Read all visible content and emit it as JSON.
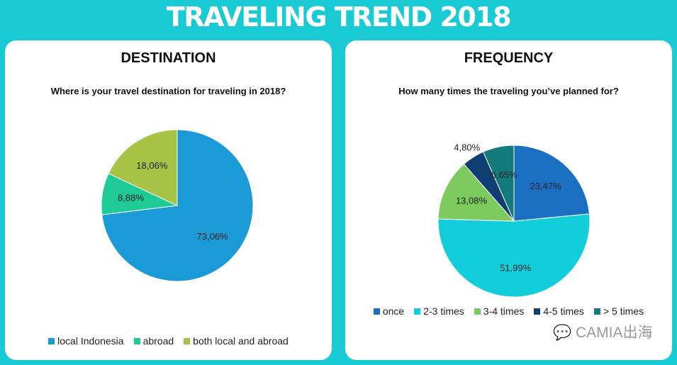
{
  "title": "TRAVELING TREND 2018",
  "watermark": "CAMIA出海",
  "chart_data": [
    {
      "type": "pie",
      "title": "DESTINATION",
      "subtitle": "Where is your travel destination for traveling in 2018?",
      "categories": [
        "local Indonesia",
        "abroad",
        "both local and abroad"
      ],
      "values": [
        73.06,
        8.88,
        18.06
      ],
      "labels": [
        "73,06%",
        "8,88%",
        "18,06%"
      ],
      "colors": [
        "#1a9ad6",
        "#1ecb96",
        "#a6c345"
      ],
      "legend": "bottom"
    },
    {
      "type": "pie",
      "title": "FREQUENCY",
      "subtitle": "How many times the traveling you’ve planned for?",
      "categories": [
        "once",
        "2-3 times",
        "3-4 times",
        "4-5 times",
        "> 5 times"
      ],
      "values": [
        23.47,
        51.99,
        13.08,
        4.8,
        6.65
      ],
      "labels": [
        "23,47%",
        "51,99%",
        "13,08%",
        "4,80%",
        "6,65%"
      ],
      "colors": [
        "#1b6fc2",
        "#12cdda",
        "#7dca5e",
        "#0f3f72",
        "#137b7b"
      ],
      "legend": "bottom"
    }
  ]
}
